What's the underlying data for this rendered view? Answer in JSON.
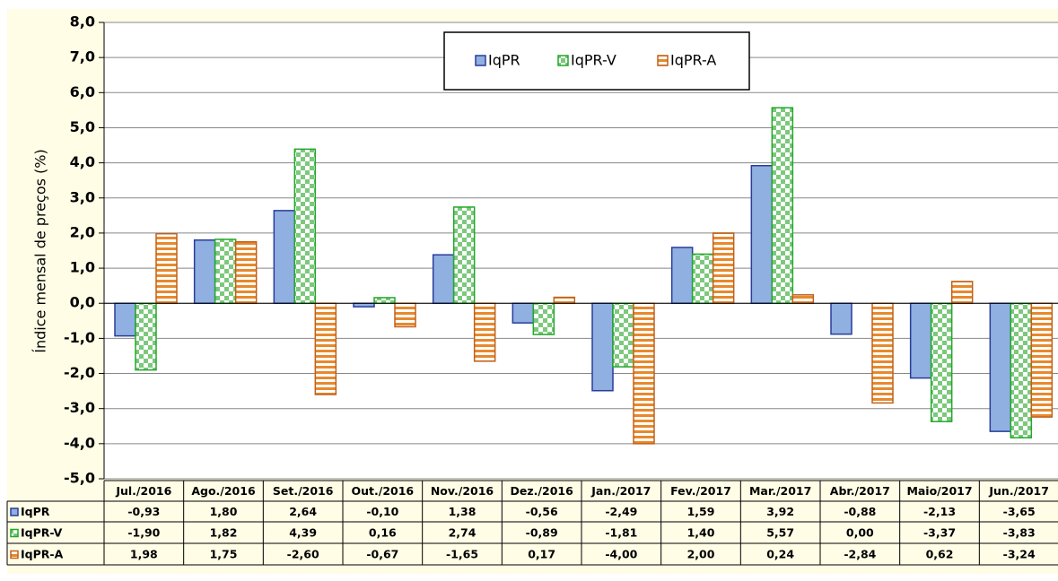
{
  "chart_data": {
    "type": "bar",
    "y_label": "Índice mensal de preços (%)",
    "categories": [
      "Jul./2016",
      "Ago./2016",
      "Set./2016",
      "Out./2016",
      "Nov./2016",
      "Dez./2016",
      "Jan./2017",
      "Fev./2017",
      "Mar./2017",
      "Abr./2017",
      "Maio/2017",
      "Jun./2017"
    ],
    "series": [
      {
        "name": "IqPR",
        "color": "#8fb0e0",
        "values": [
          -0.93,
          1.8,
          2.64,
          -0.1,
          1.38,
          -0.56,
          -2.49,
          1.59,
          3.92,
          -0.88,
          -2.13,
          -3.65
        ],
        "value_labels": [
          "-0,93",
          "1,80",
          "2,64",
          "-0,10",
          "1,38",
          "-0,56",
          "-2,49",
          "1,59",
          "3,92",
          "-0,88",
          "-2,13",
          "-3,65"
        ]
      },
      {
        "name": "IqPR-V",
        "color": "#7cc87c",
        "values": [
          -1.9,
          1.82,
          4.39,
          0.16,
          2.74,
          -0.89,
          -1.81,
          1.4,
          5.57,
          0.0,
          -3.37,
          -3.83
        ],
        "value_labels": [
          "-1,90",
          "1,82",
          "4,39",
          "0,16",
          "2,74",
          "-0,89",
          "-1,81",
          "1,40",
          "5,57",
          "0,00",
          "-3,37",
          "-3,83"
        ]
      },
      {
        "name": "IqPR-A",
        "color": "#e8892c",
        "values": [
          1.98,
          1.75,
          -2.6,
          -0.67,
          -1.65,
          0.17,
          -4.0,
          2.0,
          0.24,
          -2.84,
          0.62,
          -3.24
        ],
        "value_labels": [
          "1,98",
          "1,75",
          "-2,60",
          "-0,67",
          "-1,65",
          "0,17",
          "-4,00",
          "2,00",
          "0,24",
          "-2,84",
          "0,62",
          "-3,24"
        ]
      }
    ],
    "ylim": [
      -5,
      8
    ],
    "yticks": [
      {
        "value": -5,
        "label": "-5,0"
      },
      {
        "value": -4,
        "label": "-4,0"
      },
      {
        "value": -3,
        "label": "-3,0"
      },
      {
        "value": -2,
        "label": "-2,0"
      },
      {
        "value": -1,
        "label": "-1,0"
      },
      {
        "value": 0,
        "label": "0,0"
      },
      {
        "value": 1,
        "label": "1,0"
      },
      {
        "value": 2,
        "label": "2,0"
      },
      {
        "value": 3,
        "label": "3,0"
      },
      {
        "value": 4,
        "label": "4,0"
      },
      {
        "value": 5,
        "label": "5,0"
      },
      {
        "value": 6,
        "label": "6,0"
      },
      {
        "value": 7,
        "label": "7,0"
      },
      {
        "value": 8,
        "label": "8,0"
      }
    ],
    "grid": true
  }
}
